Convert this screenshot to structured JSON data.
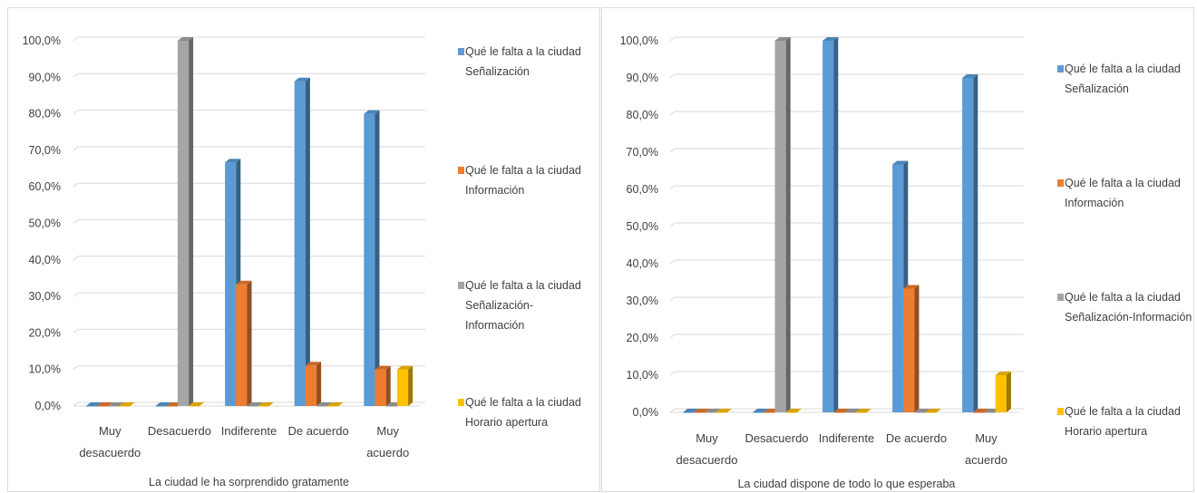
{
  "chart_data": [
    {
      "type": "bar",
      "title": "",
      "xlabel": "La ciudad le ha sorprendido gratamente",
      "ylabel": "",
      "ylim": [
        0,
        100
      ],
      "yticks": [
        "0,0%",
        "10,0%",
        "20,0%",
        "30,0%",
        "40,0%",
        "50,0%",
        "60,0%",
        "70,0%",
        "80,0%",
        "90,0%",
        "100,0%"
      ],
      "categories": [
        [
          "Muy",
          "desacuerdo"
        ],
        [
          "Desacuerdo"
        ],
        [
          "Indiferente"
        ],
        [
          "De acuerdo"
        ],
        [
          "Muy",
          "acuerdo"
        ]
      ],
      "grid": true,
      "legend_position": "right",
      "series": [
        {
          "name": [
            "Qué le falta a la ciudad",
            "Señalización"
          ],
          "color": "#5B9BD5",
          "values": [
            0,
            0,
            66.7,
            88.9,
            80.0
          ]
        },
        {
          "name": [
            "Qué le falta a la ciudad",
            "Información"
          ],
          "color": "#ED7D31",
          "values": [
            0,
            0,
            33.3,
            11.1,
            10.0
          ]
        },
        {
          "name": [
            "Qué le falta a la ciudad",
            "Señalización-",
            "Información"
          ],
          "color": "#A5A5A5",
          "values": [
            0,
            100.0,
            0,
            0,
            0
          ]
        },
        {
          "name": [
            "Qué le falta a la ciudad",
            "Horario apertura"
          ],
          "color": "#FFC000",
          "values": [
            0,
            0,
            0,
            0,
            10.0
          ]
        }
      ]
    },
    {
      "type": "bar",
      "title": "",
      "xlabel": "La ciudad dispone de todo lo que esperaba",
      "ylabel": "",
      "ylim": [
        0,
        100
      ],
      "yticks": [
        "0,0%",
        "10,0%",
        "20,0%",
        "30,0%",
        "40,0%",
        "50,0%",
        "60,0%",
        "70,0%",
        "80,0%",
        "90,0%",
        "100,0%"
      ],
      "categories": [
        [
          "Muy",
          "desacuerdo"
        ],
        [
          "Desacuerdo"
        ],
        [
          "Indiferente"
        ],
        [
          "De acuerdo"
        ],
        [
          "Muy",
          "acuerdo"
        ]
      ],
      "grid": true,
      "legend_position": "right",
      "series": [
        {
          "name": [
            "Qué le falta a la ciudad",
            "Señalización"
          ],
          "color": "#5B9BD5",
          "values": [
            0,
            0,
            100.0,
            66.7,
            90.0
          ]
        },
        {
          "name": [
            "Qué le falta a la ciudad",
            "Información"
          ],
          "color": "#ED7D31",
          "values": [
            0,
            0,
            0,
            33.3,
            0
          ]
        },
        {
          "name": [
            "Qué le falta a la ciudad",
            "Señalización-Información"
          ],
          "color": "#A5A5A5",
          "values": [
            0,
            100.0,
            0,
            0,
            0
          ]
        },
        {
          "name": [
            "Qué le falta a la ciudad",
            "Horario apertura"
          ],
          "color": "#FFC000",
          "values": [
            0,
            0,
            0,
            0,
            10.0
          ]
        }
      ]
    }
  ]
}
